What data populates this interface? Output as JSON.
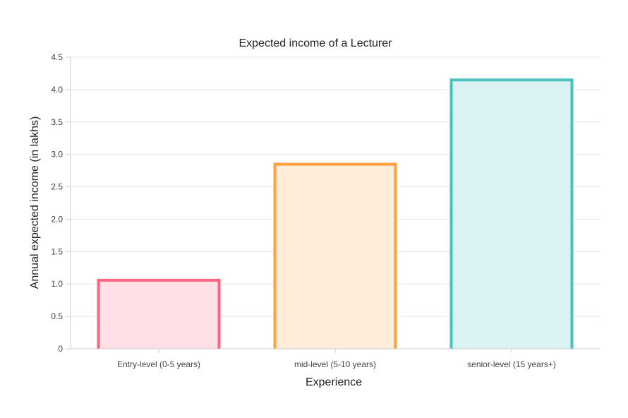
{
  "chart_data": {
    "type": "bar",
    "title": "Expected income of a Lecturer",
    "xlabel": "Experience",
    "ylabel": "Annual expected income (in lakhs)",
    "categories": [
      "Entry-level (0-5 years)",
      "mid-level (5-10 years)",
      "senior-level (15 years+)"
    ],
    "values": [
      1.08,
      2.87,
      4.17
    ],
    "ylim": [
      0,
      4.5
    ],
    "yticks": [
      {
        "value": 0,
        "label": "0"
      },
      {
        "value": 0.5,
        "label": "0.5"
      },
      {
        "value": 1.0,
        "label": "1.0"
      },
      {
        "value": 1.5,
        "label": "1.5"
      },
      {
        "value": 2.0,
        "label": "2.0"
      },
      {
        "value": 2.5,
        "label": "2.5"
      },
      {
        "value": 3.0,
        "label": "3.0"
      },
      {
        "value": 3.5,
        "label": "3.5"
      },
      {
        "value": 4.0,
        "label": "4.0"
      },
      {
        "value": 4.5,
        "label": "4.5"
      }
    ],
    "grid": true,
    "bar_colors": [
      {
        "border": "#ff6384",
        "fill": "#ffe0e6"
      },
      {
        "border": "#ff9f40",
        "fill": "#ffecd9"
      },
      {
        "border": "#4bc0c0",
        "fill": "#dbf2f2"
      }
    ]
  }
}
